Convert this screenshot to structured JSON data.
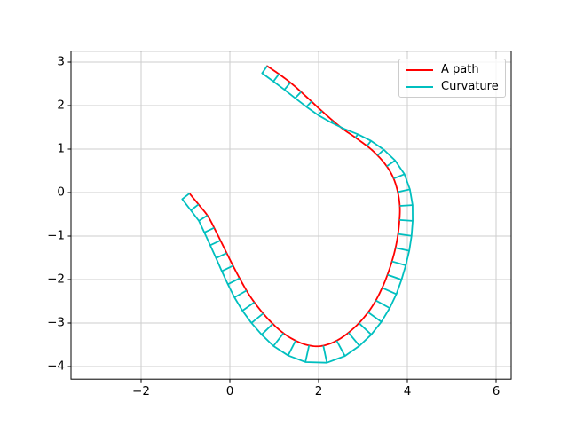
{
  "figure": {
    "background": "#ffffff",
    "grid_color": "#cdcdcd",
    "spine_color": "#000000",
    "tick_color": "#000000"
  },
  "chart_data": {
    "type": "line",
    "title": "",
    "xlabel": "",
    "ylabel": "",
    "grid": true,
    "xlim": [
      -3.58,
      6.34
    ],
    "ylim": [
      -4.29,
      3.253
    ],
    "xticks": [
      {
        "value": -2,
        "label": "−2"
      },
      {
        "value": 0,
        "label": "0"
      },
      {
        "value": 2,
        "label": "2"
      },
      {
        "value": 4,
        "label": "4"
      },
      {
        "value": 6,
        "label": "6"
      }
    ],
    "yticks": [
      {
        "value": 3,
        "label": "3"
      },
      {
        "value": 2,
        "label": "2"
      },
      {
        "value": 1,
        "label": "1"
      },
      {
        "value": 0,
        "label": "0"
      },
      {
        "value": -1,
        "label": "−1"
      },
      {
        "value": -2,
        "label": "−2"
      },
      {
        "value": -3,
        "label": "−3"
      },
      {
        "value": -4,
        "label": "−4"
      }
    ],
    "legend": {
      "position": "upper right",
      "entries": [
        {
          "label": "A path",
          "color": "#ff0000"
        },
        {
          "label": "Curvature",
          "color": "#00bfbf"
        }
      ]
    },
    "series": [
      {
        "name": "A path",
        "color": "#ff0000",
        "linewidth": 1.8,
        "columns": [
          "x",
          "y",
          "curvature_comb_offset"
        ],
        "points": [
          [
            0.84,
            2.91,
            0.2
          ],
          [
            1.1,
            2.73,
            0.21
          ],
          [
            1.4,
            2.5,
            0.21
          ],
          [
            1.75,
            2.18,
            0.18
          ],
          [
            2.1,
            1.85,
            0.12
          ],
          [
            2.5,
            1.5,
            0.0
          ],
          [
            2.85,
            1.25,
            -0.1
          ],
          [
            3.2,
            0.98,
            -0.17
          ],
          [
            3.48,
            0.68,
            -0.22
          ],
          [
            3.67,
            0.37,
            -0.26
          ],
          [
            3.78,
            0.03,
            -0.28
          ],
          [
            3.83,
            -0.32,
            -0.29
          ],
          [
            3.82,
            -0.67,
            -0.3
          ],
          [
            3.78,
            -1.02,
            -0.31
          ],
          [
            3.71,
            -1.37,
            -0.32
          ],
          [
            3.6,
            -1.75,
            -0.33
          ],
          [
            3.45,
            -2.15,
            -0.35
          ],
          [
            3.25,
            -2.55,
            -0.36
          ],
          [
            3.0,
            -2.9,
            -0.38
          ],
          [
            2.7,
            -3.2,
            -0.39
          ],
          [
            2.38,
            -3.42,
            -0.4
          ],
          [
            2.05,
            -3.53,
            -0.4
          ],
          [
            1.76,
            -3.51,
            -0.39
          ],
          [
            1.47,
            -3.4,
            -0.38
          ],
          [
            1.19,
            -3.22,
            -0.37
          ],
          [
            0.92,
            -2.97,
            -0.35
          ],
          [
            0.67,
            -2.68,
            -0.34
          ],
          [
            0.44,
            -2.36,
            -0.32
          ],
          [
            0.24,
            -2.01,
            -0.3
          ],
          [
            0.05,
            -1.64,
            -0.28
          ],
          [
            -0.13,
            -1.27,
            -0.26
          ],
          [
            -0.31,
            -0.9,
            -0.25
          ],
          [
            -0.49,
            -0.55,
            -0.23
          ],
          [
            -0.7,
            -0.28,
            -0.22
          ],
          [
            -0.91,
            -0.02,
            -0.21
          ]
        ]
      },
      {
        "name": "Curvature",
        "color": "#00bfbf",
        "linewidth": 1.8,
        "style": "perpendicular comb on path, tooth length = curvature_comb_offset, envelope polyline through tooth tips",
        "tooth_count": 42
      }
    ]
  }
}
